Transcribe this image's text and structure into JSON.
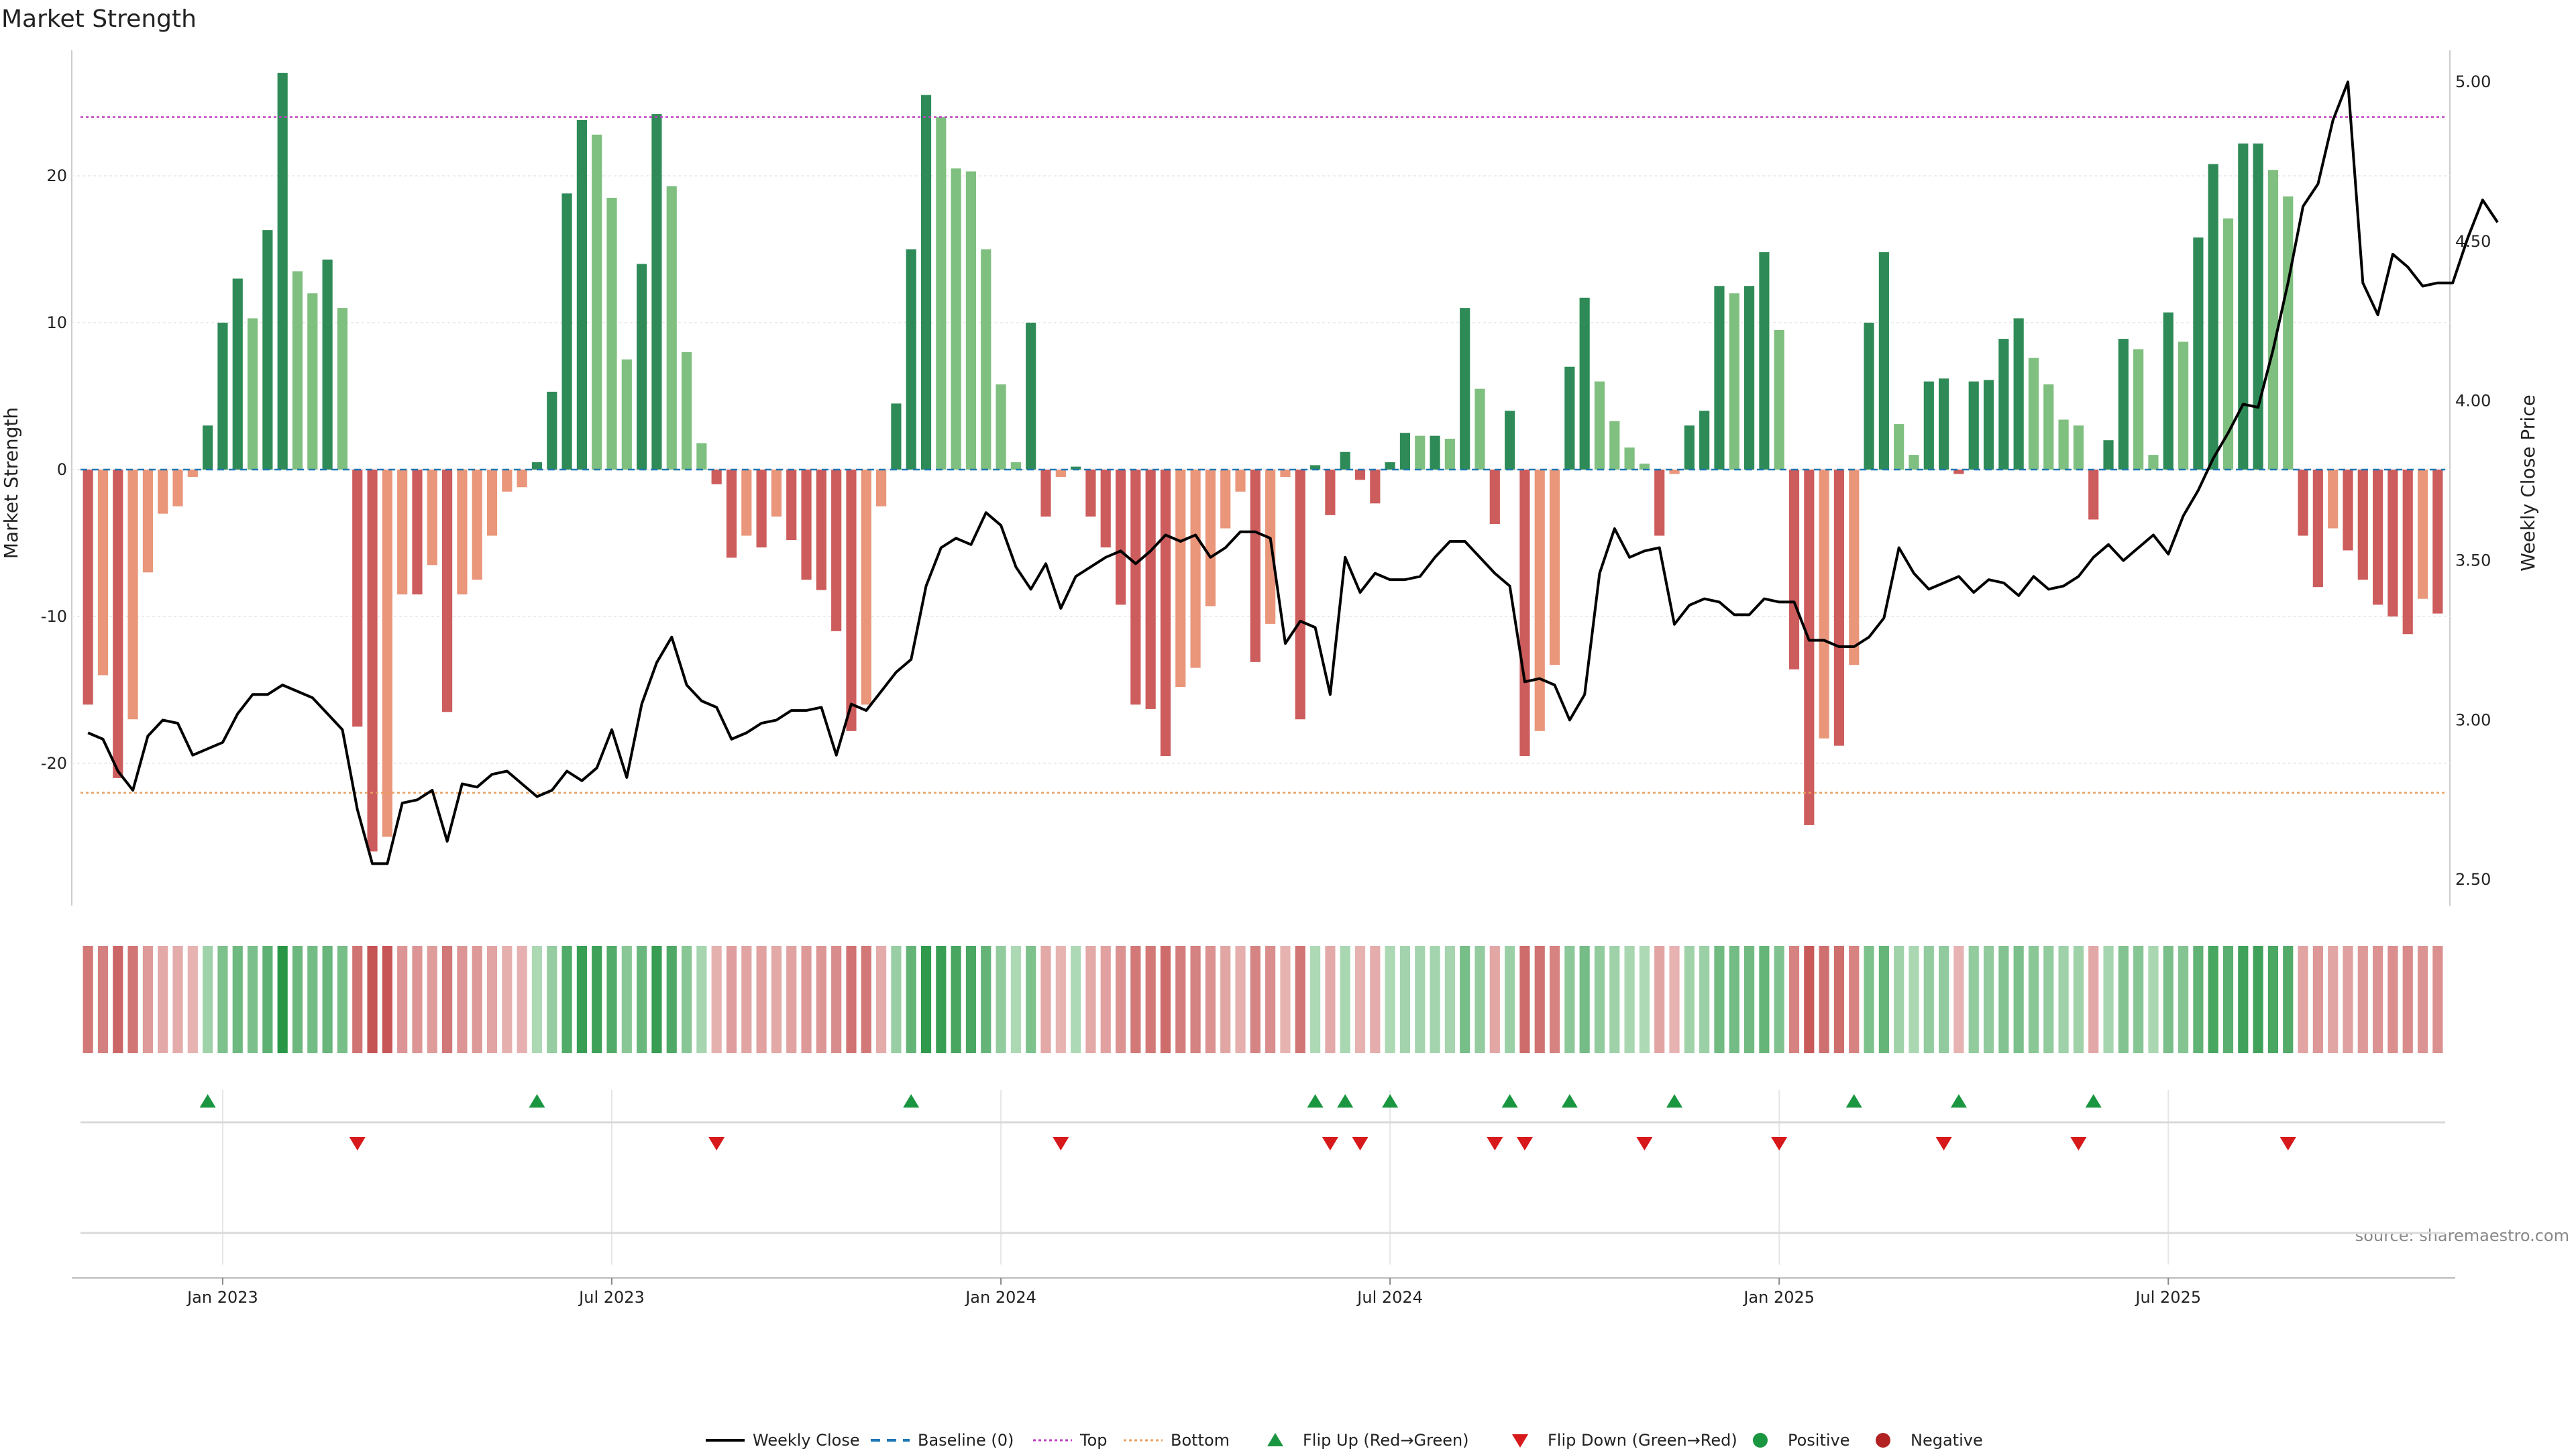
{
  "chart_data": {
    "type": "bar",
    "title": "Market Strength",
    "ylabel_left": "Market Strength",
    "ylabel_right": "Weekly Close Price",
    "source": "source: sharemaestro.com",
    "ylim_left": [
      -29,
      29
    ],
    "ylim_right": [
      2.45,
      5.12
    ],
    "yticks_left": [
      -20,
      -10,
      0,
      10,
      20
    ],
    "yticks_right": [
      "2.50",
      "3.00",
      "3.50",
      "4.00",
      "4.50",
      "5.00"
    ],
    "xticks": [
      {
        "week": 9,
        "label": "Jan 2023"
      },
      {
        "week": 35,
        "label": "Jul 2023"
      },
      {
        "week": 61,
        "label": "Jan 2024"
      },
      {
        "week": 87,
        "label": "Jul 2024"
      },
      {
        "week": 113,
        "label": "Jan 2025"
      },
      {
        "week": 139,
        "label": "Jul 2025"
      }
    ],
    "top_line": 24,
    "bottom_line": -22,
    "colors": {
      "up_dark": "#2e8b57",
      "up_light": "#7fbf7f",
      "down_dark": "#cd5c5c",
      "down_light": "#e9967a",
      "price": "#000000",
      "top": "#c040c0",
      "bottom": "#e8a060",
      "baseline": "#1f77b4",
      "flip_up": "#1a9641",
      "flip_down": "#d7191c",
      "positive": "#1a9641",
      "negative": "#b22222"
    },
    "strength": [
      -16,
      -14,
      -21,
      -17,
      -7,
      -3,
      -2.5,
      -0.5,
      3,
      10,
      13,
      10.3,
      16.3,
      27,
      13.5,
      12,
      14.3,
      11,
      -17.5,
      -26,
      -25,
      -8.5,
      -8.5,
      -6.5,
      -16.5,
      -8.5,
      -7.5,
      -4.5,
      -1.5,
      -1.2,
      0.5,
      5.3,
      18.8,
      23.8,
      22.8,
      18.5,
      7.5,
      14,
      24.2,
      19.3,
      8,
      1.8,
      -1,
      -6,
      -4.5,
      -5.3,
      -3.2,
      -4.8,
      -7.5,
      -8.2,
      -11,
      -17.8,
      -16,
      -2.5,
      4.5,
      15,
      25.5,
      24,
      20.5,
      20.3,
      15,
      5.8,
      0.5,
      10,
      -3.2,
      -0.5,
      0.2,
      -3.2,
      -5.3,
      -9.2,
      -16,
      -16.3,
      -19.5,
      -14.8,
      -13.5,
      -9.3,
      -4,
      -1.5,
      -13.1,
      -10.5,
      -0.5,
      -17,
      0.3,
      -3.1,
      1.2,
      -0.7,
      -2.3,
      0.5,
      2.5,
      2.3,
      2.3,
      2.1,
      11,
      5.5,
      -3.7,
      4,
      -19.5,
      -17.8,
      -13.3,
      7,
      11.7,
      6,
      3.3,
      1.5,
      0.4,
      -4.5,
      -0.3,
      3,
      4,
      12.5,
      12,
      12.5,
      14.8,
      9.5,
      -13.6,
      -24.2,
      -18.3,
      -18.8,
      -13.3,
      10,
      14.8,
      3.1,
      1,
      6,
      6.2,
      -0.3,
      6,
      6.1,
      8.9,
      10.3,
      7.6,
      5.8,
      3.4,
      3,
      -3.4,
      2,
      8.9,
      8.2,
      1,
      10.7,
      8.7,
      15.8,
      20.8,
      17.1,
      22.2,
      22.2,
      20.4,
      18.6,
      -4.5,
      -8,
      -4,
      -5.5,
      -7.5,
      -9.2,
      -10,
      -11.2,
      -8.8,
      -9.8
    ],
    "price": [
      2.96,
      2.94,
      2.84,
      2.78,
      2.95,
      3.0,
      2.99,
      2.89,
      2.91,
      2.93,
      3.02,
      3.08,
      3.08,
      3.11,
      3.09,
      3.07,
      3.02,
      2.97,
      2.72,
      2.55,
      2.55,
      2.74,
      2.75,
      2.78,
      2.62,
      2.8,
      2.79,
      2.83,
      2.84,
      2.8,
      2.76,
      2.78,
      2.84,
      2.81,
      2.85,
      2.97,
      2.82,
      3.05,
      3.18,
      3.26,
      3.11,
      3.06,
      3.04,
      2.94,
      2.96,
      2.99,
      3.0,
      3.03,
      3.03,
      3.04,
      2.89,
      3.05,
      3.03,
      3.09,
      3.15,
      3.19,
      3.42,
      3.54,
      3.57,
      3.55,
      3.65,
      3.61,
      3.48,
      3.41,
      3.49,
      3.35,
      3.45,
      3.48,
      3.51,
      3.53,
      3.49,
      3.53,
      3.58,
      3.56,
      3.58,
      3.51,
      3.54,
      3.59,
      3.59,
      3.57,
      3.24,
      3.31,
      3.29,
      3.08,
      3.51,
      3.4,
      3.46,
      3.44,
      3.44,
      3.45,
      3.51,
      3.56,
      3.56,
      3.51,
      3.46,
      3.42,
      3.12,
      3.13,
      3.11,
      3.0,
      3.08,
      3.46,
      3.6,
      3.51,
      3.53,
      3.54,
      3.3,
      3.36,
      3.38,
      3.37,
      3.33,
      3.33,
      3.38,
      3.37,
      3.37,
      3.25,
      3.25,
      3.23,
      3.23,
      3.26,
      3.32,
      3.54,
      3.46,
      3.41,
      3.43,
      3.45,
      3.4,
      3.44,
      3.43,
      3.39,
      3.45,
      3.41,
      3.42,
      3.45,
      3.51,
      3.55,
      3.5,
      3.54,
      3.58,
      3.52,
      3.64,
      3.72,
      3.82,
      3.9,
      3.99,
      3.98,
      4.16,
      4.37,
      4.61,
      4.68,
      4.88,
      5.0,
      4.37,
      4.27,
      4.46,
      4.42,
      4.36,
      4.37,
      4.37,
      4.51,
      4.63,
      4.56
    ],
    "flip_up_weeks": [
      8,
      30,
      55,
      82,
      84,
      87,
      95,
      99,
      106,
      118,
      125,
      134
    ],
    "flip_down_weeks": [
      18,
      42,
      65,
      83,
      85,
      94,
      96,
      104,
      113,
      124,
      133,
      147
    ],
    "legend": [
      {
        "label": "Weekly Close",
        "kind": "line"
      },
      {
        "label": "Baseline (0)",
        "kind": "dash"
      },
      {
        "label": "Top",
        "kind": "dotted-top"
      },
      {
        "label": "Bottom",
        "kind": "dotted-bottom"
      },
      {
        "label": "Flip Up (Red→Green)",
        "kind": "tri-up"
      },
      {
        "label": "Flip Down (Green→Red)",
        "kind": "tri-down"
      },
      {
        "label": "Positive",
        "kind": "dot-pos"
      },
      {
        "label": "Negative",
        "kind": "dot-neg"
      }
    ]
  }
}
